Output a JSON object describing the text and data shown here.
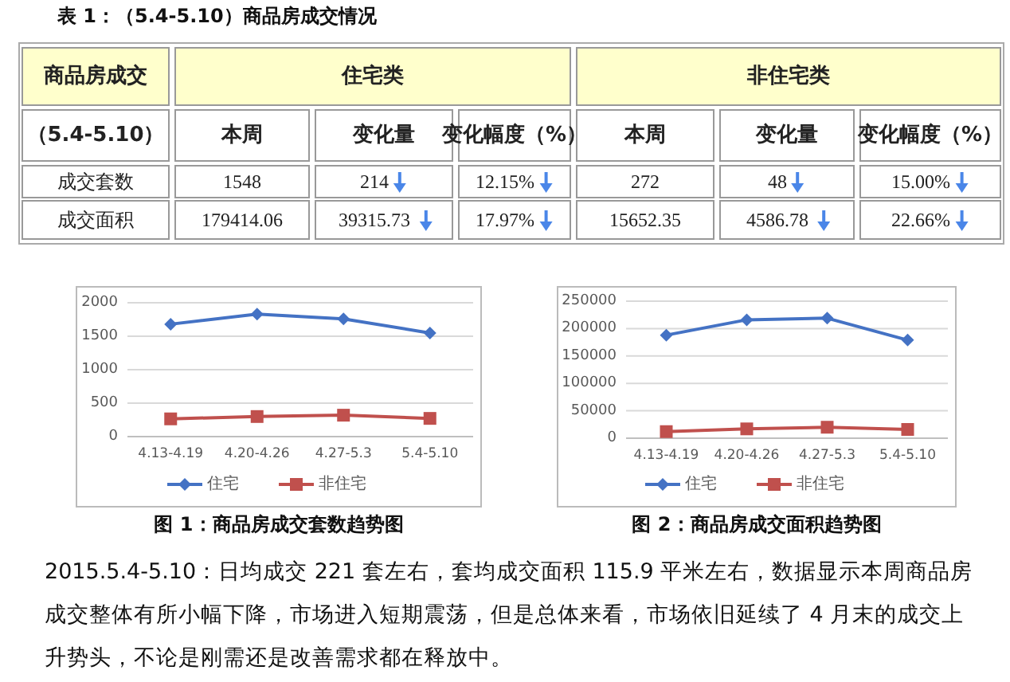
{
  "chart_data": [
    {
      "type": "other",
      "title": "表 1：（5.4-5.10）商品房成交情况",
      "annotations": [
        "商品房成交",
        "住宅类",
        "非住宅类",
        "（5.4-5.10）",
        "本周",
        "变化量",
        "变化幅度（%）",
        "本周",
        "变化量",
        "变化幅度（%）",
        "成交套数",
        "1548",
        "214",
        "12.15%",
        "272",
        "48",
        "15.00%",
        "成交面积",
        "179414.06",
        "39315.73",
        "17.97%",
        "15652.35",
        "4586.78",
        "22.66%"
      ]
    },
    {
      "type": "line",
      "title": "图 1：商品房成交套数趋势图",
      "categories": [
        "4.13-4.19",
        "4.20-4.26",
        "4.27-5.3",
        "5.4-5.10"
      ],
      "series": [
        {
          "name": "住宅",
          "color": "#4472c4",
          "marker": "diamond",
          "values": [
            1680,
            1830,
            1760,
            1548
          ]
        },
        {
          "name": "非住宅",
          "color": "#c0504d",
          "marker": "square",
          "values": [
            265,
            300,
            320,
            272
          ]
        }
      ],
      "ylim": [
        0,
        2000
      ],
      "yticks": [
        0,
        500,
        1000,
        1500,
        2000
      ],
      "grid": "y",
      "legend": "bottom"
    },
    {
      "type": "line",
      "title": "图 2：商品房成交面积趋势图",
      "categories": [
        "4.13-4.19",
        "4.20-4.26",
        "4.27-5.3",
        "5.4-5.10"
      ],
      "series": [
        {
          "name": "住宅",
          "color": "#4472c4",
          "marker": "diamond",
          "values": [
            188000,
            216000,
            219000,
            179000
          ]
        },
        {
          "name": "非住宅",
          "color": "#c0504d",
          "marker": "square",
          "values": [
            12000,
            17000,
            20000,
            16000
          ]
        }
      ],
      "ylim": [
        0,
        250000
      ],
      "yticks": [
        0,
        50000,
        100000,
        150000,
        200000,
        250000
      ],
      "grid": "y",
      "legend": "bottom",
      "annotations": [
        "2015.5.4-5.10：日均成交 221 套左右，套均成交面积 115.9 平米左右，数据显示本周商品房成交整体有所小幅下降，市场进入短期震荡，但是总体来看，市场依旧延续了 4 月末的成交上升势头，不论是刚需还是改善需求都在释放中。"
      ]
    }
  ]
}
